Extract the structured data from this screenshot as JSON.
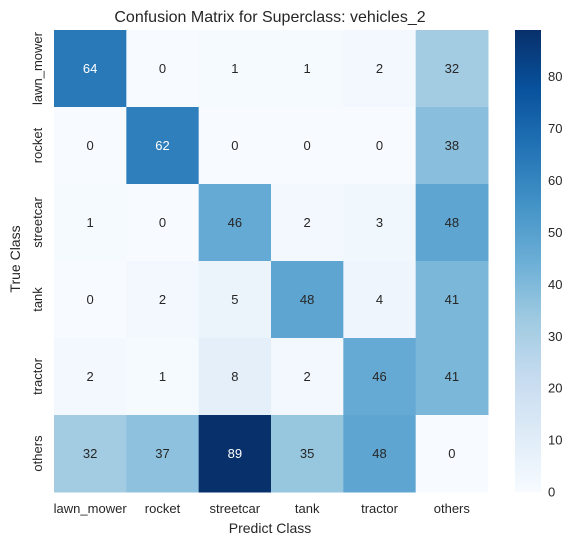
{
  "chart_data": {
    "type": "heatmap",
    "title": "Confusion Matrix for Superclass: vehicles_2",
    "xlabel": "Predict Class",
    "ylabel": "True Class",
    "x_categories": [
      "lawn_mower",
      "rocket",
      "streetcar",
      "tank",
      "tractor",
      "others"
    ],
    "y_categories": [
      "lawn_mower",
      "rocket",
      "streetcar",
      "tank",
      "tractor",
      "others"
    ],
    "values": [
      [
        64,
        0,
        1,
        1,
        2,
        32
      ],
      [
        0,
        62,
        0,
        0,
        0,
        38
      ],
      [
        1,
        0,
        46,
        2,
        3,
        48
      ],
      [
        0,
        2,
        5,
        48,
        4,
        41
      ],
      [
        2,
        1,
        8,
        2,
        46,
        41
      ],
      [
        32,
        37,
        89,
        35,
        48,
        0
      ]
    ],
    "colorbar": {
      "colormap": "Blues",
      "vmin": 0,
      "vmax": 89,
      "ticks": [
        0,
        10,
        20,
        30,
        40,
        50,
        60,
        70,
        80
      ]
    }
  }
}
